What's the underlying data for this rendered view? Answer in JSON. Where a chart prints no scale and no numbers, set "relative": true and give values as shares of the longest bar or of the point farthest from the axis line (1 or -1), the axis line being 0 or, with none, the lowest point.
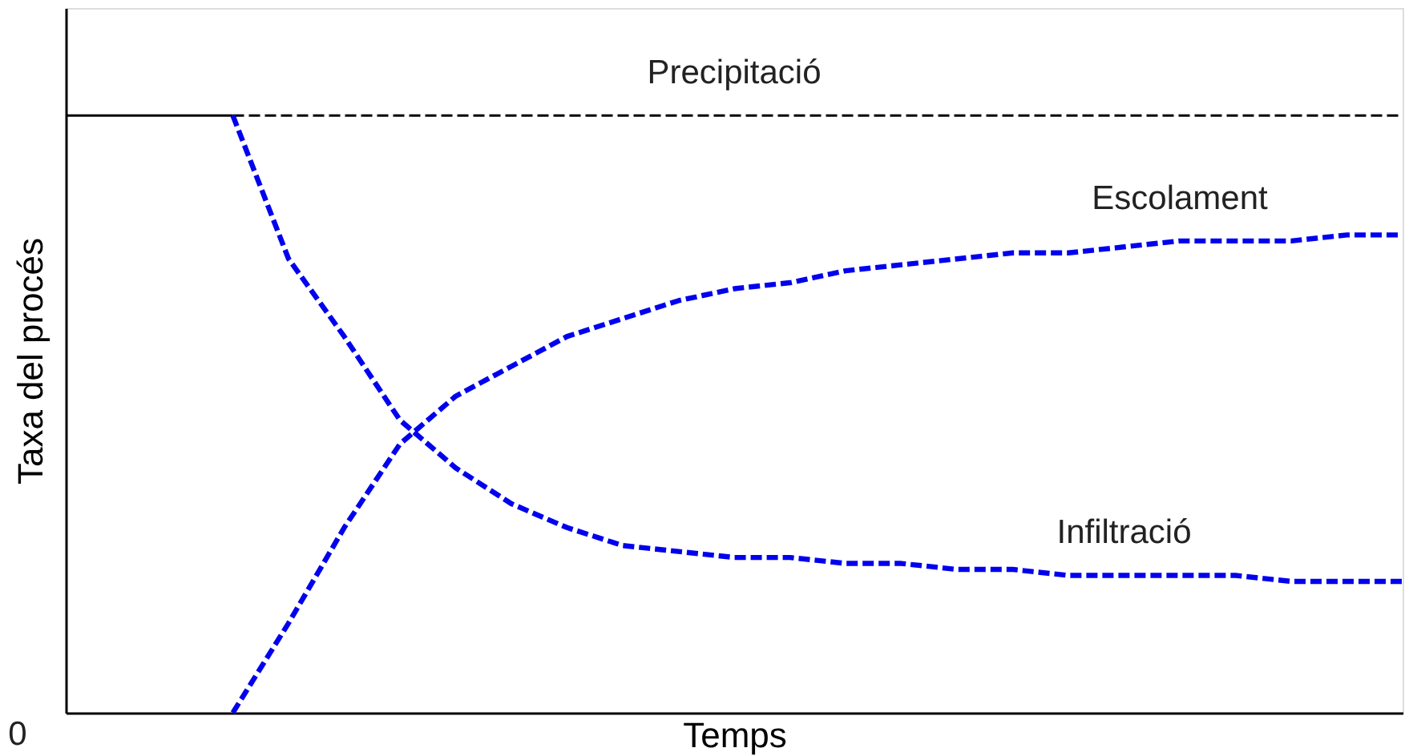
{
  "chart_data": {
    "type": "line",
    "relative": true,
    "xlabel": "Temps",
    "ylabel": "Taxa del procés",
    "categories": [
      null,
      null,
      null,
      null,
      null,
      null,
      null,
      null,
      null,
      null,
      null,
      null,
      null,
      null,
      null,
      null,
      null,
      null,
      null,
      null,
      null,
      null,
      null,
      null,
      null
    ],
    "grid": false,
    "legend": false,
    "marker": "none",
    "annotations": [
      "0"
    ],
    "series": [
      {
        "color": "#000000",
        "line_style": "solid",
        "values": [
          1,
          1,
          1,
          1,
          null,
          null,
          null,
          null,
          null,
          null,
          null,
          null,
          null,
          null,
          null,
          null,
          null,
          null,
          null,
          null,
          null,
          null,
          null,
          null,
          null
        ]
      },
      {
        "name": "Precipitació",
        "color": "#000000",
        "line_style": "dashed",
        "values": [
          null,
          null,
          null,
          1,
          1,
          1,
          1,
          1,
          1,
          1,
          1,
          1,
          1,
          1,
          1,
          1,
          1,
          1,
          1,
          1,
          1,
          1,
          1,
          1,
          1
        ]
      },
      {
        "name": "Escolament",
        "color": "#0000ee",
        "line_style": "dashed",
        "values": [
          null,
          null,
          null,
          0,
          0.15,
          0.31,
          0.45,
          0.53,
          0.58,
          0.63,
          0.66,
          0.69,
          0.71,
          0.72,
          0.74,
          0.75,
          0.76,
          0.77,
          0.77,
          0.78,
          0.79,
          0.79,
          0.79,
          0.8,
          0.8
        ]
      },
      {
        "name": "Infiltració",
        "color": "#0000ee",
        "line_style": "dashed",
        "values": [
          null,
          null,
          null,
          1,
          0.76,
          0.63,
          0.49,
          0.41,
          0.35,
          0.31,
          0.28,
          0.27,
          0.26,
          0.26,
          0.25,
          0.25,
          0.24,
          0.24,
          0.23,
          0.23,
          0.23,
          0.23,
          0.22,
          0.22,
          0.22
        ]
      }
    ]
  }
}
